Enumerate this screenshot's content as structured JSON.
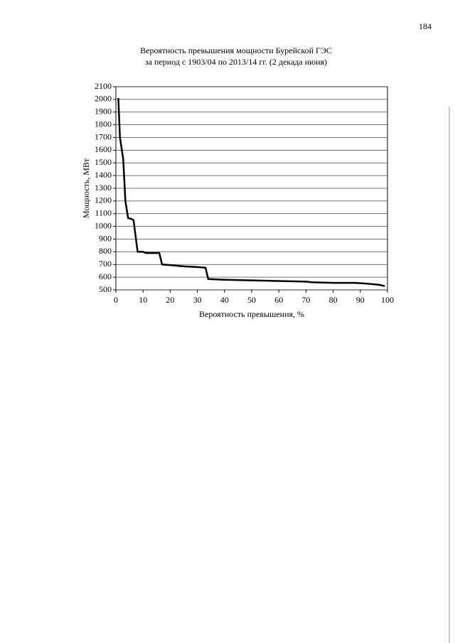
{
  "page_number": "184",
  "chart_data": {
    "type": "line",
    "title": "Вероятность превышения мощности Бурейской ГЭС",
    "subtitle": "за период с 1903/04 по 2013/14 гг. (2 декада июня)",
    "x_label": "Вероятность превышения, %",
    "y_label": "Мощность, МВт",
    "x": [
      0.9,
      1.5,
      2.7,
      3.5,
      4.5,
      5.5,
      6.5,
      8,
      10,
      11,
      16,
      17,
      20,
      25,
      30,
      33,
      34,
      40,
      50,
      60,
      70,
      72,
      80,
      88,
      92,
      97,
      99
    ],
    "values": [
      2010,
      1700,
      1530,
      1200,
      1065,
      1060,
      1050,
      800,
      800,
      790,
      790,
      700,
      695,
      685,
      680,
      675,
      585,
      580,
      575,
      570,
      565,
      560,
      555,
      555,
      550,
      540,
      530
    ],
    "color": "#000000",
    "xlim": [
      0,
      100
    ],
    "xticks": [
      0,
      10,
      20,
      30,
      40,
      50,
      60,
      70,
      80,
      90,
      100
    ],
    "ylim": [
      500,
      2100
    ],
    "yticks": [
      500,
      600,
      700,
      800,
      900,
      1000,
      1100,
      1200,
      1300,
      1400,
      1500,
      1600,
      1700,
      1800,
      1900,
      2000,
      2100
    ],
    "grid": true
  }
}
